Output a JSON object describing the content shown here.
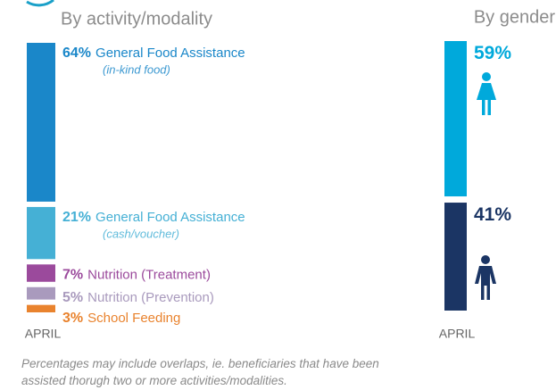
{
  "chart_data": [
    {
      "type": "stacked-bar",
      "title": "By activity/modality",
      "categories": [
        "APRIL"
      ],
      "series": [
        {
          "name": "General Food Assistance",
          "subtitle": "(in-kind food)",
          "color": "#1a87c9",
          "values": [
            64
          ],
          "value_labels": [
            "64%"
          ]
        },
        {
          "name": "General Food Assistance",
          "subtitle": "(cash/voucher)",
          "color": "#45b0d5",
          "values": [
            21
          ],
          "value_labels": [
            "21%"
          ]
        },
        {
          "name": "Nutrition (Treatment)",
          "color": "#9b4a9c",
          "values": [
            7
          ],
          "value_labels": [
            "7%"
          ]
        },
        {
          "name": "Nutrition (Prevention)",
          "color": "#a99abd",
          "values": [
            5
          ],
          "value_labels": [
            "5%"
          ]
        },
        {
          "name": "School Feeding",
          "color": "#e9832e",
          "values": [
            3
          ],
          "value_labels": [
            "3%"
          ]
        }
      ]
    },
    {
      "type": "stacked-bar",
      "title": "By gender",
      "categories": [
        "APRIL"
      ],
      "series": [
        {
          "color": "#00a9db",
          "values": [
            59
          ],
          "value_labels": [
            "59%"
          ]
        },
        {
          "color": "#1b3564",
          "values": [
            41
          ],
          "value_labels": [
            "41%"
          ]
        }
      ]
    }
  ],
  "footnote": "Percentages may include overlaps, ie. beneficiaries that have been assisted thorugh two or more activities/modalities."
}
